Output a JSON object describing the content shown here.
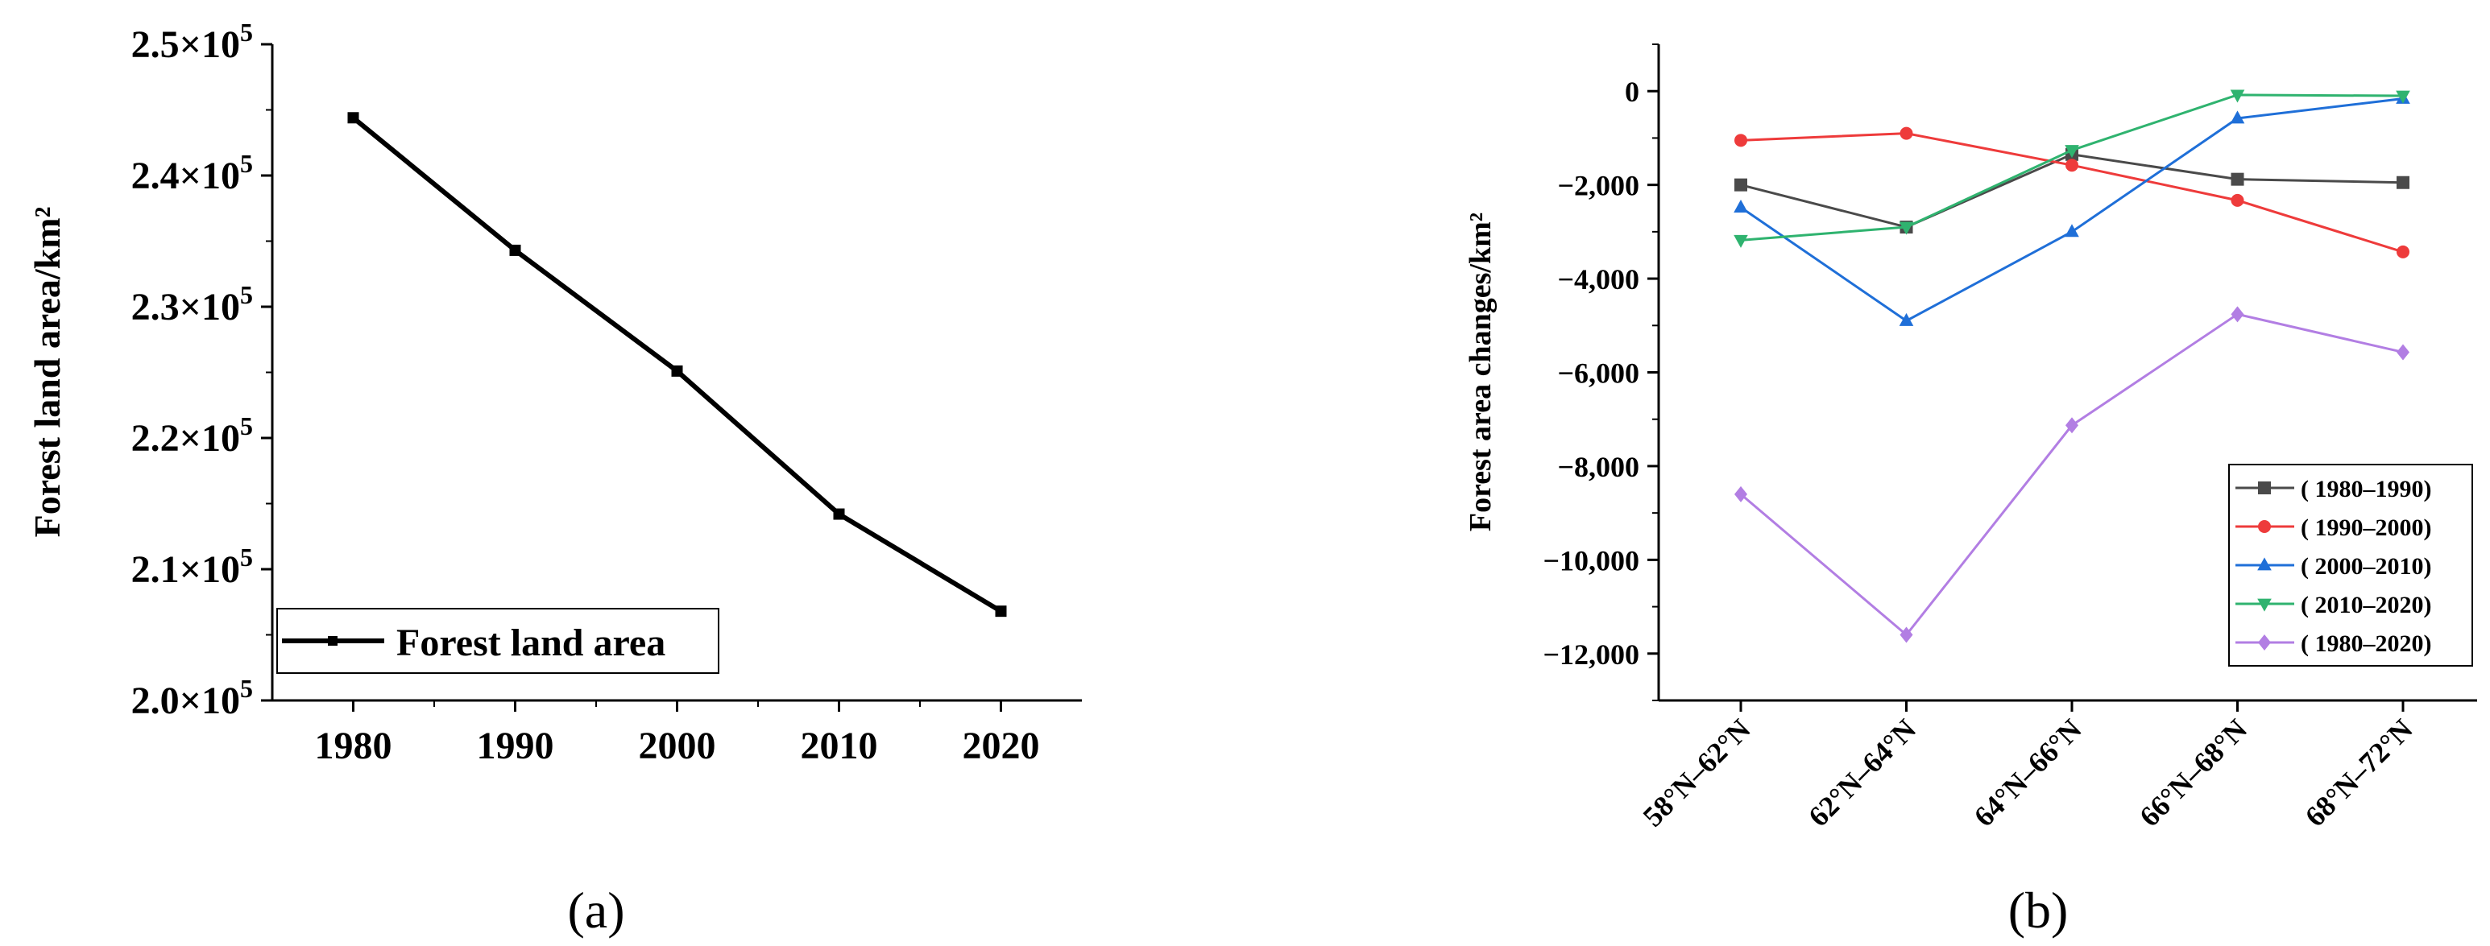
{
  "chart_data": [
    {
      "type": "line",
      "panel": "a",
      "x": [
        1980,
        1990,
        2000,
        2010,
        2020
      ],
      "series": [
        {
          "name": "Forest land area",
          "values": [
            244400,
            234300,
            225100,
            214200,
            206800
          ],
          "color": "#000000",
          "marker": "square"
        }
      ],
      "ylabel": "Forest land area/km²",
      "ylim": [
        200000,
        250000
      ],
      "xlim": [
        1975,
        2025
      ],
      "ytick_values": [
        200000,
        210000,
        220000,
        230000,
        240000,
        250000
      ],
      "ytick_labels": [
        {
          "mant": "2.0×10",
          "exp": "5"
        },
        {
          "mant": "2.1×10",
          "exp": "5"
        },
        {
          "mant": "2.2×10",
          "exp": "5"
        },
        {
          "mant": "2.3×10",
          "exp": "5"
        },
        {
          "mant": "2.4×10",
          "exp": "5"
        },
        {
          "mant": "2.5×10",
          "exp": "5"
        }
      ],
      "xtick_labels": [
        "1980",
        "1990",
        "2000",
        "2010",
        "2020"
      ],
      "legend_position": "bottom-left",
      "panel_label": "(a)"
    },
    {
      "type": "line",
      "panel": "b",
      "categories": [
        "58°N–62°N",
        "62°N–64°N",
        "64°N–66°N",
        "66°N–68°N",
        "68°N–72°N"
      ],
      "series": [
        {
          "name": "( 1980–1990)",
          "values": [
            -2000,
            -2900,
            -1350,
            -1880,
            -1950
          ],
          "color": "#4a4a4a",
          "marker": "square"
        },
        {
          "name": "( 1990–2000)",
          "values": [
            -1050,
            -900,
            -1580,
            -2330,
            -3430
          ],
          "color": "#ee3b3b",
          "marker": "circle"
        },
        {
          "name": "( 2000–2010)",
          "values": [
            -2480,
            -4900,
            -3000,
            -580,
            -160
          ],
          "color": "#1f6fd8",
          "marker": "triangle-up"
        },
        {
          "name": "( 2010–2020)",
          "values": [
            -3180,
            -2900,
            -1260,
            -80,
            -100
          ],
          "color": "#2fb36f",
          "marker": "triangle-down"
        },
        {
          "name": "( 1980–2020)",
          "values": [
            -8600,
            -11600,
            -7130,
            -4760,
            -5570
          ],
          "color": "#b27ee3",
          "marker": "diamond"
        }
      ],
      "ylabel": "Forest area changes/km²",
      "ylim": [
        -13000,
        1000
      ],
      "ytick_values": [
        0,
        -2000,
        -4000,
        -6000,
        -8000,
        -10000,
        -12000
      ],
      "ytick_labels": [
        "0",
        "−2,000",
        "−4,000",
        "−6,000",
        "−8,000",
        "−10,000",
        "−12,000"
      ],
      "legend_position": "bottom-right",
      "panel_label": "(b)"
    }
  ]
}
